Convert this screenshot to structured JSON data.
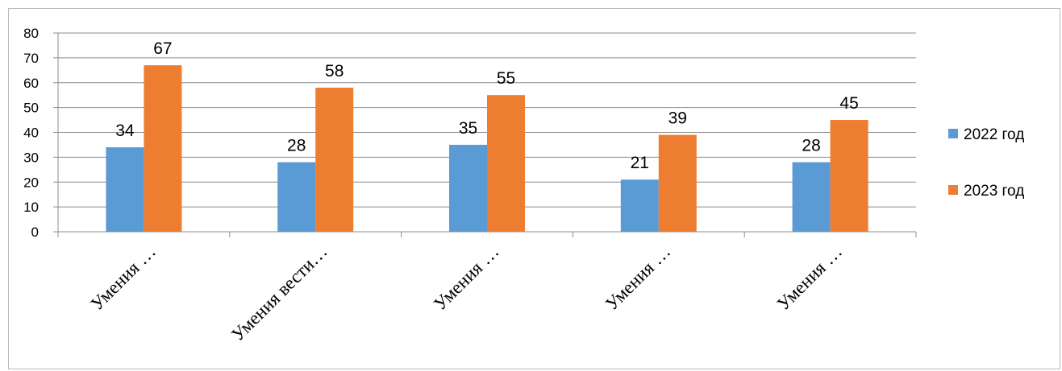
{
  "chart_data": {
    "type": "bar",
    "categories": [
      "Умения …",
      "Умения вести…",
      "Умения …",
      "Умения …",
      "Умения …"
    ],
    "series": [
      {
        "name": "2022 год",
        "values": [
          34,
          28,
          35,
          21,
          28
        ],
        "color": "#5b9bd5"
      },
      {
        "name": "2023 год",
        "values": [
          67,
          58,
          55,
          39,
          45
        ],
        "color": "#ed7d31"
      }
    ],
    "ylim": [
      0,
      80
    ],
    "yticks": [
      0,
      10,
      20,
      30,
      40,
      50,
      60,
      70,
      80
    ],
    "grid": true,
    "legend": "right",
    "data_labels": true,
    "title": "",
    "xlabel": "",
    "ylabel": ""
  }
}
